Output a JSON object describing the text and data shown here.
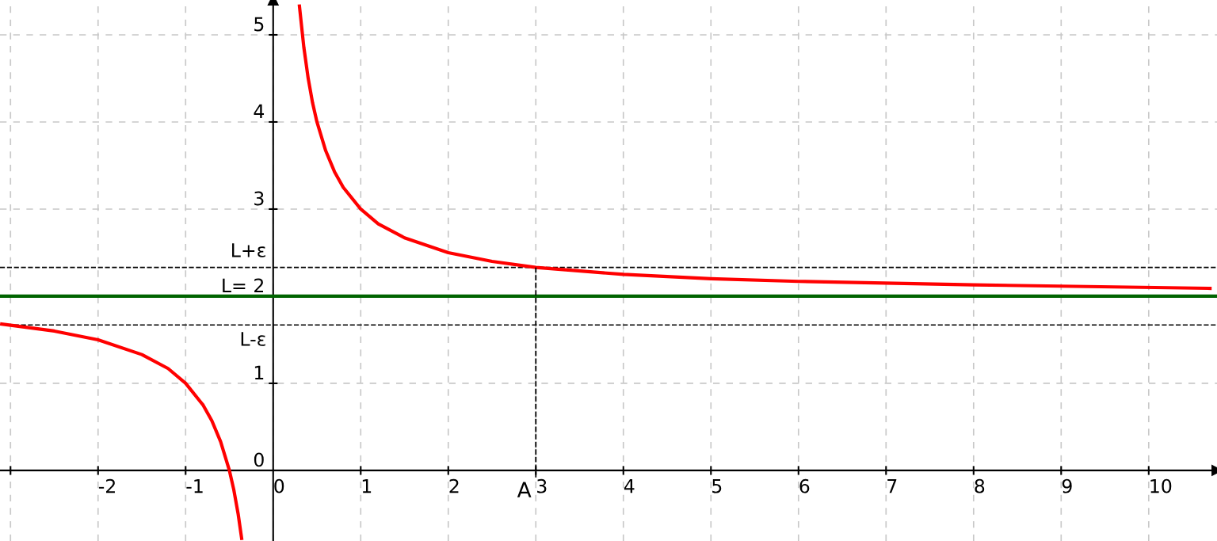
{
  "chart_data": {
    "type": "line",
    "x": [
      -3.1,
      -2.5,
      -2,
      -1.5,
      -1.2,
      -1,
      -0.8,
      -0.7,
      -0.6,
      -0.5,
      -0.45,
      -0.4,
      -0.36,
      null,
      0.3,
      0.35,
      0.4,
      0.45,
      0.5,
      0.6,
      0.7,
      0.8,
      1,
      1.2,
      1.5,
      2,
      2.5,
      3,
      4,
      5,
      6,
      8,
      10.7
    ],
    "series": [
      {
        "color": "#ff0000",
        "values": [
          1.68,
          1.6,
          1.5,
          1.33,
          1.17,
          1,
          0.75,
          0.57,
          0.33,
          0,
          -0.22,
          -0.5,
          -0.78,
          null,
          5.33,
          4.86,
          4.5,
          4.22,
          4,
          3.67,
          3.43,
          3.25,
          3,
          2.83,
          2.67,
          2.5,
          2.4,
          2.33,
          2.25,
          2.2,
          2.17,
          2.13,
          2.09
        ]
      },
      {
        "color": "#000000",
        "line_style": "dashed",
        "x": [
          3,
          3
        ],
        "values": [
          -0.08,
          2.33
        ]
      }
    ],
    "xlim": [
      -3.12,
      10.78
    ],
    "ylim": [
      -0.81,
      5.4
    ],
    "xticks": [
      {
        "value": -3,
        "label": null
      },
      -2,
      -1,
      0,
      1,
      2,
      3,
      4,
      5,
      6,
      7,
      8,
      9,
      10
    ],
    "yticks": [
      0,
      1,
      {
        "value": 2,
        "label": "L= 2"
      },
      3,
      4,
      5
    ],
    "grid": true,
    "ref_lines": [
      {
        "axis": "y",
        "value": 2,
        "color": "#006400",
        "line_style": "solid"
      },
      {
        "axis": "y",
        "value": 2.33,
        "label": "L+ε",
        "color": "#000000",
        "line_style": "dashed"
      },
      {
        "axis": "y",
        "value": 1.67,
        "label": "L-ε",
        "color": "#000000",
        "line_style": "dashed"
      }
    ],
    "annotations": [
      {
        "text": "A",
        "x": 3,
        "y": 0
      }
    ]
  }
}
